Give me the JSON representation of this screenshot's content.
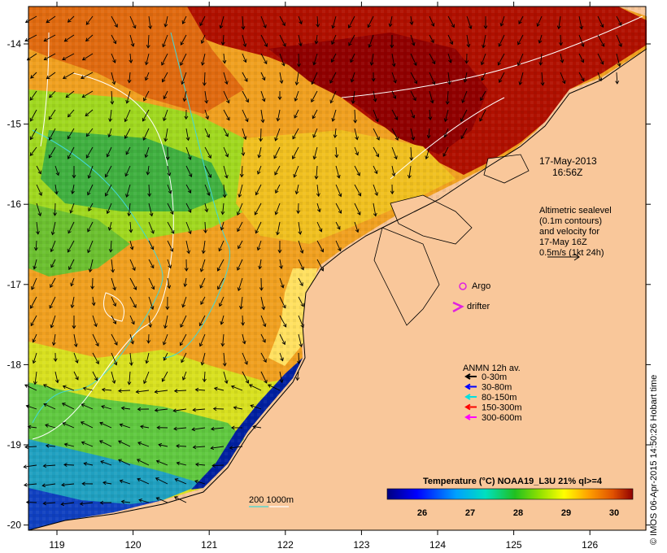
{
  "map": {
    "x_ticks": [
      "119",
      "120",
      "121",
      "122",
      "123",
      "124",
      "125",
      "126"
    ],
    "y_ticks": [
      "-14",
      "-15",
      "-16",
      "-17",
      "-18",
      "-19",
      "-20"
    ],
    "land_color": "#f9c79a",
    "date_line1": "17-May-2013",
    "date_line2": "16:56Z",
    "altimetry_lines": [
      "Altimetric sealevel",
      "(0.1m contours)",
      "and velocity for",
      "17-May 16Z",
      "0.5m/s (1kt 24h)"
    ],
    "argo_label": "Argo",
    "drifter_label": "drifter",
    "anmn_title": "ANMN 12h av.",
    "anmn_items": [
      {
        "label": "0-30m",
        "color": "#000000"
      },
      {
        "label": "30-80m",
        "color": "#0000ff"
      },
      {
        "label": "80-150m",
        "color": "#00e0e0"
      },
      {
        "label": "150-300m",
        "color": "#ff0000"
      },
      {
        "label": "300-600m",
        "color": "#ff00ff"
      }
    ],
    "depth_contours_label": "200  1000m",
    "colorbar_title": "Temperature (°C) NOAA19_L3U 21% ql>=4",
    "colorbar_ticks": [
      "26",
      "27",
      "28",
      "29",
      "30"
    ],
    "credit": "© IMOS 06-Apr-2015 14:50:26 Hobart time"
  }
}
